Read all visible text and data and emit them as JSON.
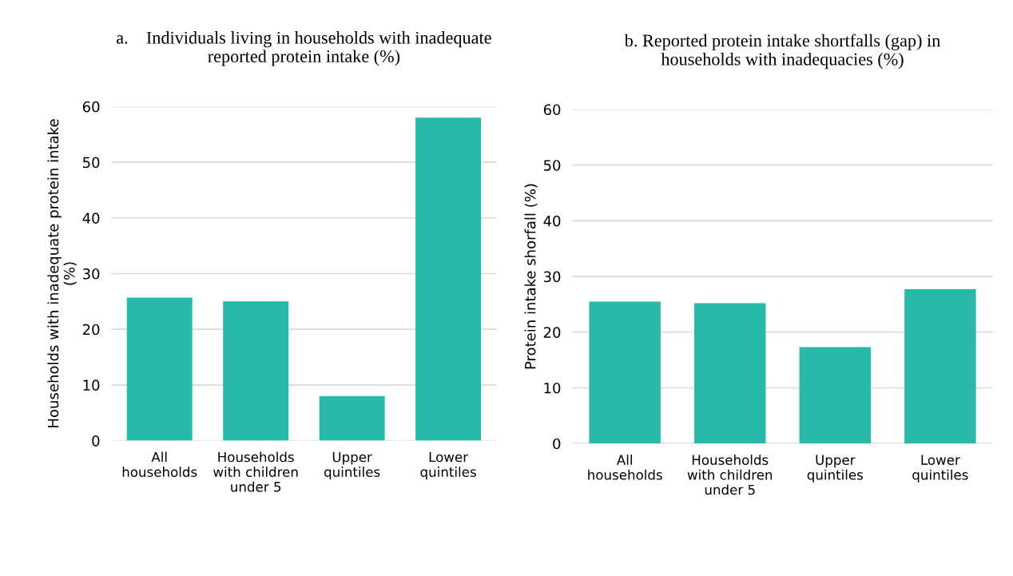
{
  "chart_data": [
    {
      "type": "bar",
      "title": "a.    Individuals living in households with inadequate\nreported protein intake (%)",
      "ylabel": "Households with inadequate protein intake\n(%)",
      "categories": [
        "All\nhouseholds",
        "Households\nwith children\nunder 5",
        "Upper\nquintiles",
        "Lower\nquintiles"
      ],
      "values": [
        25.7,
        25.0,
        8.0,
        58.0
      ],
      "color": "#27baa9",
      "ylim": [
        0,
        60
      ],
      "yticks": [
        0,
        10,
        20,
        30,
        40,
        50,
        60
      ],
      "grid": "y"
    },
    {
      "type": "bar",
      "title": "b. Reported protein intake shortfalls (gap) in\nhouseholds with inadequacies (%)",
      "ylabel": "Protein intake shorfall (%)",
      "categories": [
        "All\nhouseholds",
        "Households\nwith children\nunder 5",
        "Upper\nquintiles",
        "Lower\nquintiles"
      ],
      "values": [
        25.5,
        25.2,
        17.3,
        27.7
      ],
      "color": "#27baa9",
      "ylim": [
        0,
        60
      ],
      "yticks": [
        0,
        10,
        20,
        30,
        40,
        50,
        60
      ],
      "grid": "y"
    }
  ]
}
